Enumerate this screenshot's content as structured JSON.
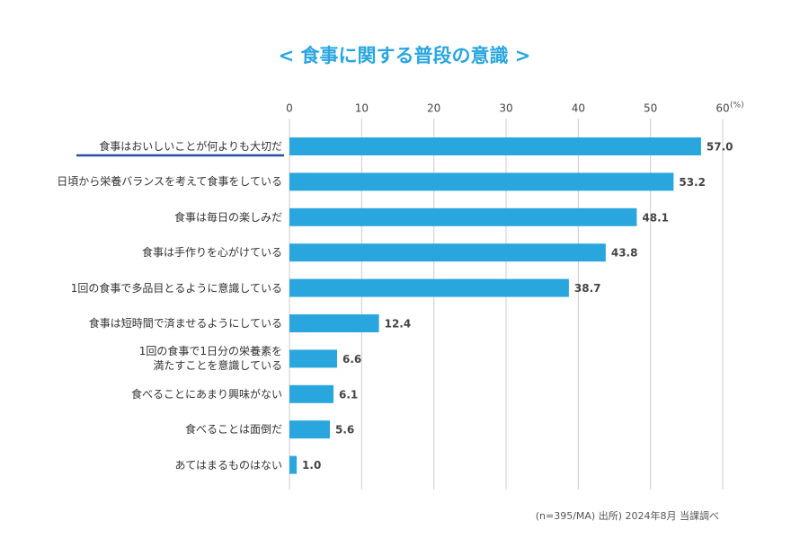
{
  "chart_data": {
    "type": "bar",
    "orientation": "horizontal",
    "title": "< 食事に関する普段の意識 >",
    "unit": "(%)",
    "note": "(n=395/MA) 出所) 2024年8月 当課調べ",
    "categories": [
      "食事はおいしいことが何よりも大切だ",
      "日頃から栄養バランスを考えて食事をしている",
      "食事は毎日の楽しみだ",
      "食事は手作りを心がけている",
      "1回の食事で多品目とるように意識している",
      "食事は短時間で済ませるようにしている",
      "1回の食事で1日分の栄養素を\n満たすことを意識している",
      "食べることにあまり興味がない",
      "食べることは面倒だ",
      "あてはまるものはない"
    ],
    "values": [
      57,
      53.2,
      48.1,
      43.8,
      38.7,
      12.4,
      6.6,
      6.1,
      5.6,
      1
    ],
    "value_labels": [
      "57.0",
      "53.2",
      "48.1",
      "43.8",
      "38.7",
      "12.4",
      "6.6",
      "6.1",
      "5.6",
      "1.0"
    ],
    "color": "#2aa6de",
    "xlim": [
      0,
      60
    ],
    "xticks": [
      0,
      10,
      20,
      30,
      40,
      50,
      60
    ],
    "grid": true
  }
}
